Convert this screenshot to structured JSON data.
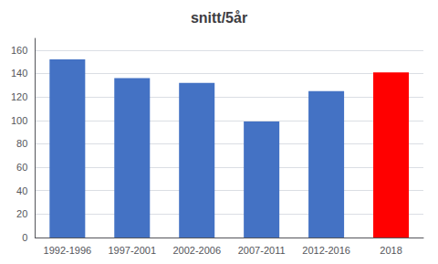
{
  "chart_data": {
    "type": "bar",
    "title": "snitt/5år",
    "categories": [
      "1992-1996",
      "1997-2001",
      "2002-2006",
      "2007-2011",
      "2012-2016",
      "2018"
    ],
    "values": [
      152,
      136,
      132,
      99,
      125,
      141
    ],
    "colors": [
      "#4472C4",
      "#4472C4",
      "#4472C4",
      "#4472C4",
      "#4472C4",
      "#FF0000"
    ],
    "ylim": [
      0,
      170
    ],
    "yticks": [
      0,
      20,
      40,
      60,
      80,
      100,
      120,
      140,
      160
    ],
    "grid": true
  }
}
